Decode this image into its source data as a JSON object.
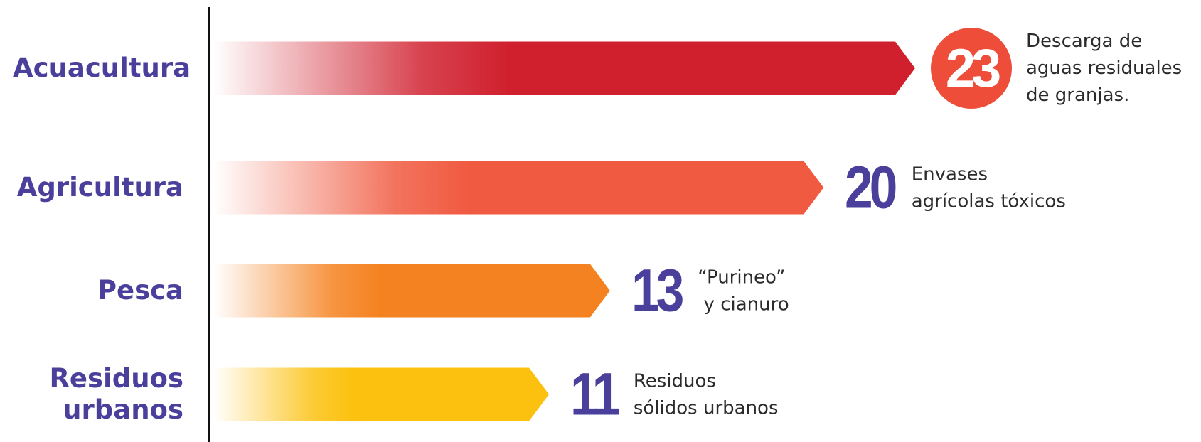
{
  "chart_data": {
    "type": "bar",
    "categories": [
      "Acuacultura",
      "Agricultura",
      "Pesca",
      "Residuos urbanos"
    ],
    "values": [
      23,
      20,
      13,
      11
    ],
    "colors": [
      "#d0202e",
      "#f05a40",
      "#f58220",
      "#fcc10f"
    ],
    "annotations": [
      [
        "Descarga de",
        "aguas residuales",
        "de granjas."
      ],
      [
        "Envases",
        "agrícolas tóxicos"
      ],
      [
        "“Purineo”",
        " y cianuro"
      ],
      [
        "Residuos",
        "sólidos urbanos"
      ]
    ]
  }
}
